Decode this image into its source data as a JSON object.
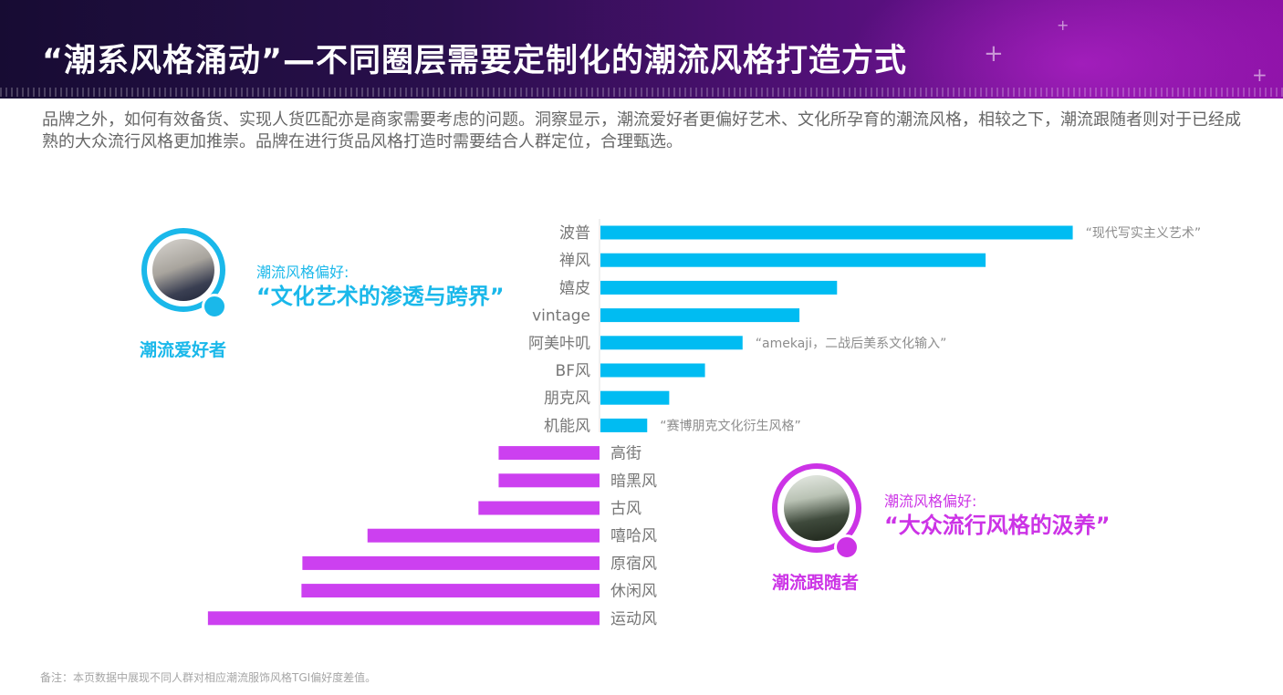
{
  "header": {
    "title": "“潮系风格涌动”—不同圈层需要定制化的潮流风格打造方式"
  },
  "intro": "品牌之外，如何有效备货、实现人货匹配亦是商家需要考虑的问题。洞察显示，潮流爱好者更偏好艺术、文化所孕育的潮流风格，相较之下，潮流跟随者则对于已经成熟的大众流行风格更加推崇。品牌在进行货品风格打造时需要结合人群定位，合理甄选。",
  "personas": {
    "enthusiast": {
      "name": "潮流爱好者",
      "pref_small": "潮流风格偏好:",
      "pref_big": "“文化艺术的渗透与跨界”",
      "color": "#1ab8ea"
    },
    "follower": {
      "name": "潮流跟随者",
      "pref_small": "潮流风格偏好:",
      "pref_big": "“大众流行风格的汲养”",
      "color": "#cc33e6"
    }
  },
  "chart_data": {
    "type": "bar",
    "orientation": "horizontal-diverging",
    "colors": {
      "positive": "#00bcf2",
      "negative": "#cc40f0"
    },
    "categories": [
      "波普",
      "禅风",
      "嬉皮",
      "vintage",
      "阿美咔叽",
      "BF风",
      "朋克风",
      "机能风",
      "高街",
      "暗黑风",
      "古风",
      "嘻哈风",
      "原宿风",
      "休闲风",
      "运动风"
    ],
    "values": [
      51.5,
      42,
      25.8,
      21.7,
      15.5,
      11.4,
      7.5,
      5.1,
      -11,
      -11,
      -13.2,
      -25.3,
      -32.4,
      -32.5,
      -42.7
    ],
    "annotations": [
      {
        "category": "波普",
        "text": "“现代写实主义艺术”"
      },
      {
        "category": "阿美咔叽",
        "text": "“amekaji，二战后美系文化输入”"
      },
      {
        "category": "机能风",
        "text": "“赛博朋克文化衍生风格”"
      }
    ]
  },
  "footnote": "备注：本页数据中展现不同人群对相应潮流服饰风格TGI偏好度差值。"
}
